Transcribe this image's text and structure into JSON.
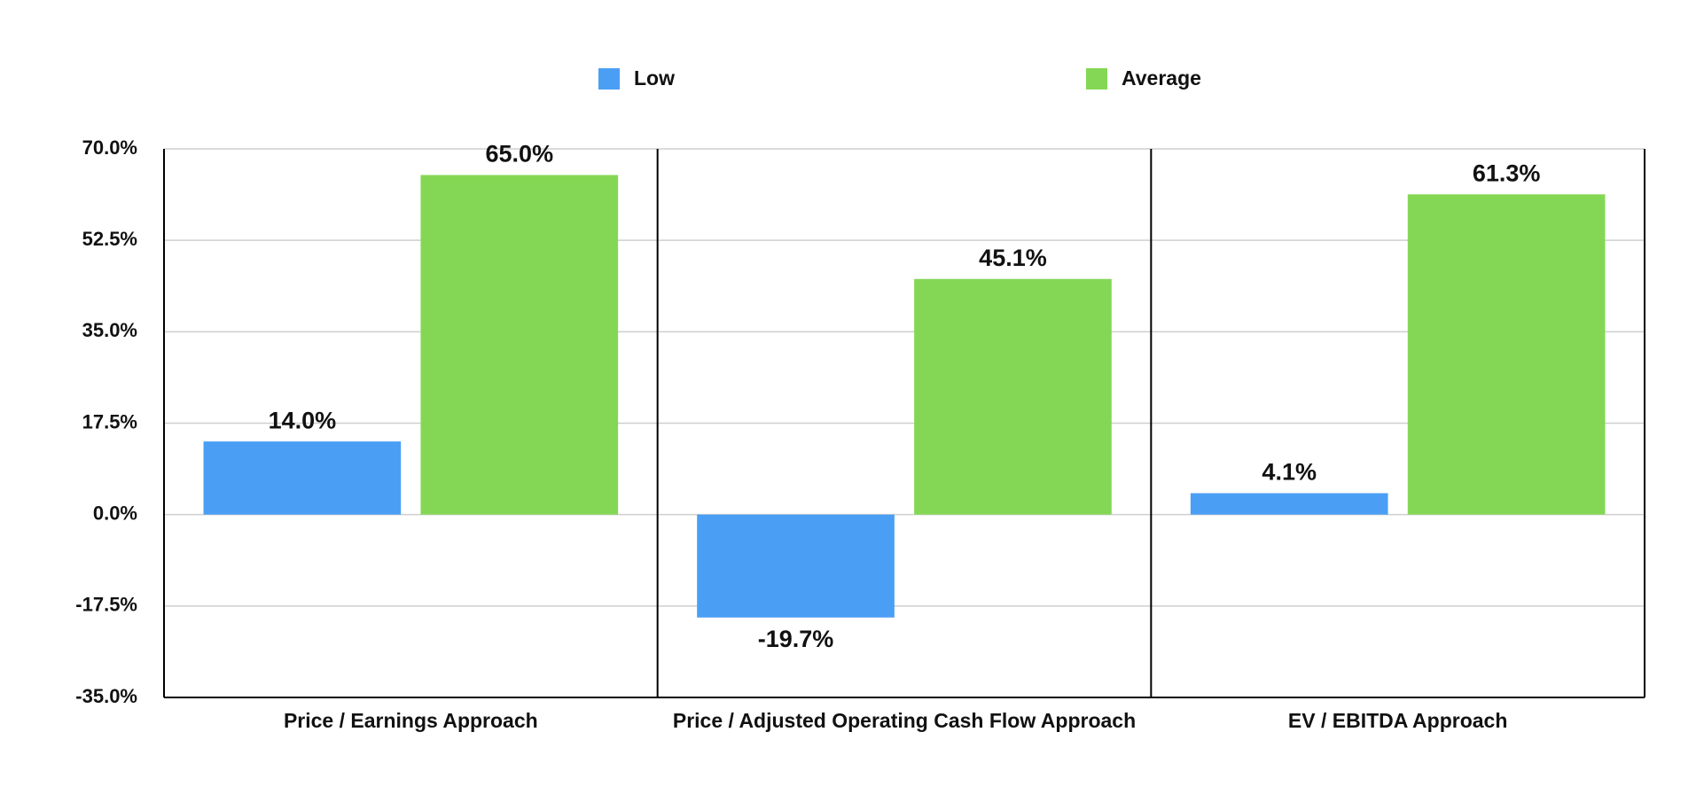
{
  "chart_data": {
    "type": "bar",
    "categories": [
      "Price / Earnings Approach",
      "Price / Adjusted Operating Cash Flow Approach",
      "EV / EBITDA Approach"
    ],
    "series": [
      {
        "name": "Low",
        "color": "#4a9ff5",
        "values": [
          14.0,
          -19.7,
          4.1
        ],
        "value_labels": [
          "14.0%",
          "-19.7%",
          "4.1%"
        ]
      },
      {
        "name": "Average",
        "color": "#84d754",
        "values": [
          65.0,
          45.1,
          61.3
        ],
        "value_labels": [
          "65.0%",
          "45.1%",
          "61.3%"
        ]
      }
    ],
    "ylim": [
      -35,
      70
    ],
    "yticks": [
      {
        "value": -35,
        "label": "-35.0%"
      },
      {
        "value": -17.5,
        "label": "-17.5%"
      },
      {
        "value": 0,
        "label": "0.0%"
      },
      {
        "value": 17.5,
        "label": "17.5%"
      },
      {
        "value": 35,
        "label": "35.0%"
      },
      {
        "value": 52.5,
        "label": "52.5%"
      },
      {
        "value": 70,
        "label": "70.0%"
      }
    ],
    "grid": true,
    "legend": "top"
  }
}
